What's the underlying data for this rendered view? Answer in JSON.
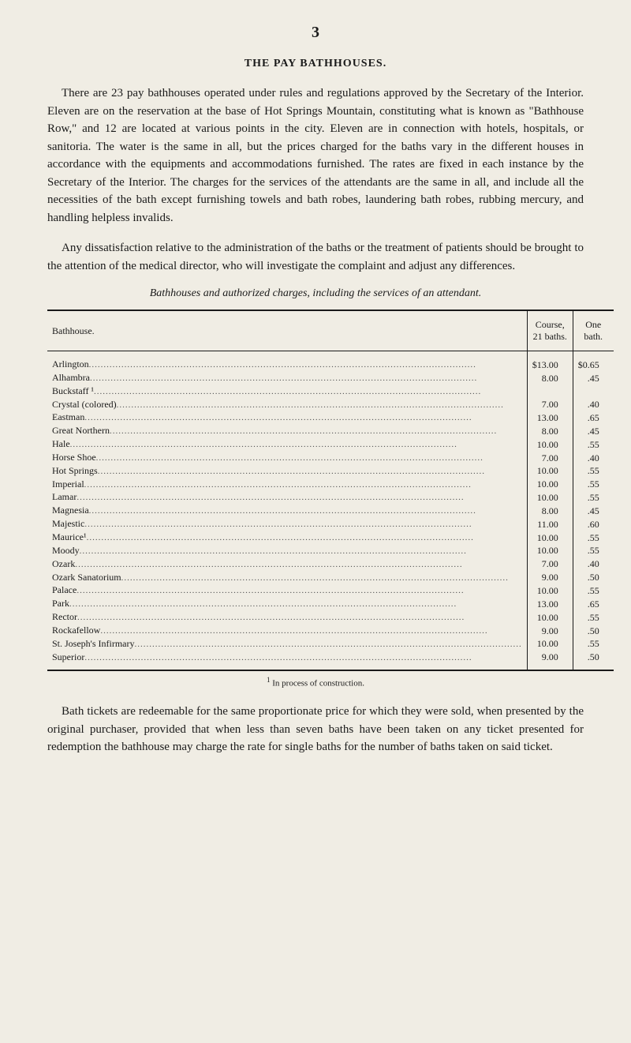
{
  "page_number": "3",
  "section_title": "THE PAY BATHHOUSES.",
  "para1": "There are 23 pay bathhouses operated under rules and regulations approved by the Secretary of the Interior. Eleven are on the reservation at the base of Hot Springs Mountain, constituting what is known as \"Bathhouse Row,\" and 12 are located at various points in the city. Eleven are in connection with hotels, hospitals, or sanitoria. The water is the same in all, but the prices charged for the baths vary in the different houses in accordance with the equipments and accommodations furnished. The rates are fixed in each instance by the Secretary of the Interior. The charges for the services of the attendants are the same in all, and include all the necessities of the bath except furnishing towels and bath robes, laundering bath robes, rubbing mercury, and handling helpless invalids.",
  "para2": "Any dissatisfaction relative to the administration of the baths or the treatment of patients should be brought to the attention of the medical director, who will investigate the complaint and adjust any differences.",
  "table_caption": "Bathhouses and authorized charges, including the services of an attendant.",
  "table": {
    "headers": {
      "name": "Bathhouse.",
      "course": "Course, 21 baths.",
      "one": "One bath."
    },
    "rows": [
      {
        "name": "Arlington",
        "course": "$13.00",
        "one": "$0.65"
      },
      {
        "name": "Alhambra",
        "course": "8.00",
        "one": ".45"
      },
      {
        "name": "Buckstaff ¹",
        "course": "",
        "one": ""
      },
      {
        "name": "Crystal (colored)",
        "course": "7.00",
        "one": ".40"
      },
      {
        "name": "Eastman",
        "course": "13.00",
        "one": ".65"
      },
      {
        "name": "Great Northern",
        "course": "8.00",
        "one": ".45"
      },
      {
        "name": "Hale",
        "course": "10.00",
        "one": ".55"
      },
      {
        "name": "Horse Shoe",
        "course": "7.00",
        "one": ".40"
      },
      {
        "name": "Hot Springs",
        "course": "10.00",
        "one": ".55"
      },
      {
        "name": "Imperial",
        "course": "10.00",
        "one": ".55"
      },
      {
        "name": "Lamar",
        "course": "10.00",
        "one": ".55"
      },
      {
        "name": "Magnesia",
        "course": "8.00",
        "one": ".45"
      },
      {
        "name": "Majestic",
        "course": "11.00",
        "one": ".60"
      },
      {
        "name": "Maurice¹",
        "course": "10.00",
        "one": ".55"
      },
      {
        "name": "Moody",
        "course": "10.00",
        "one": ".55"
      },
      {
        "name": "Ozark",
        "course": "7.00",
        "one": ".40"
      },
      {
        "name": "Ozark Sanatorium",
        "course": "9.00",
        "one": ".50"
      },
      {
        "name": "Palace",
        "course": "10.00",
        "one": ".55"
      },
      {
        "name": "Park",
        "course": "13.00",
        "one": ".65"
      },
      {
        "name": "Rector",
        "course": "10.00",
        "one": ".55"
      },
      {
        "name": "Rockafellow",
        "course": "9.00",
        "one": ".50"
      },
      {
        "name": "St. Joseph's Infirmary",
        "course": "10.00",
        "one": ".55"
      },
      {
        "name": "Superior",
        "course": "9.00",
        "one": ".50"
      }
    ]
  },
  "footnote": "In process of construction.",
  "footnote_marker": "1",
  "para3": "Bath tickets are redeemable for the same proportionate price for which they were sold, when presented by the original purchaser, provided that when less than seven baths have been taken on any ticket presented for redemption the bathhouse may charge the rate for single baths for the number of baths taken on said ticket."
}
